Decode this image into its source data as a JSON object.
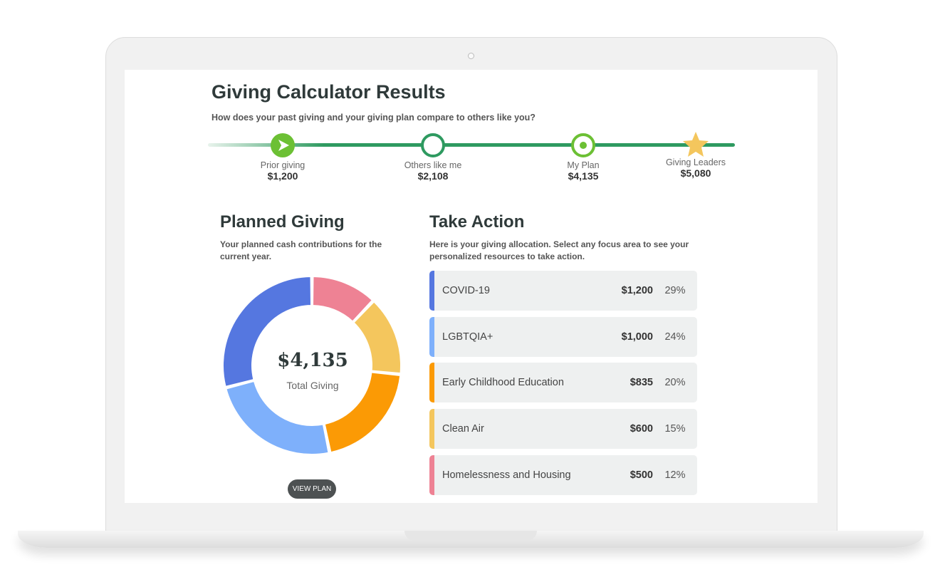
{
  "header": {
    "title": "Giving Calculator Results",
    "subtitle": "How does your past giving and your giving plan compare to others like you?"
  },
  "progress": [
    {
      "label": "Prior giving",
      "value": "$1,200",
      "icon": "play-arrow-icon"
    },
    {
      "label": "Others like me",
      "value": "$2,108",
      "icon": "ring-icon"
    },
    {
      "label": "My Plan",
      "value": "$4,135",
      "icon": "target-icon"
    },
    {
      "label": "Giving Leaders",
      "value": "$5,080",
      "icon": "star-icon"
    }
  ],
  "planned": {
    "title": "Planned Giving",
    "description": "Your planned cash contributions for the current year.",
    "total": "$4,135",
    "total_label": "Total Giving",
    "button": "VIEW PLAN"
  },
  "action": {
    "title": "Take Action",
    "description": "Here is your giving allocation. Select any focus area to see your personalized resources to take action.",
    "items": [
      {
        "name": "COVID-19",
        "amount": "$1,200",
        "percent": "29%",
        "color": "#5577e0"
      },
      {
        "name": "LGBTQIA+",
        "amount": "$1,000",
        "percent": "24%",
        "color": "#7eb0fb"
      },
      {
        "name": "Early Childhood Education",
        "amount": "$835",
        "percent": "20%",
        "color": "#fb9a05"
      },
      {
        "name": "Clean Air",
        "amount": "$600",
        "percent": "15%",
        "color": "#f4c65d"
      },
      {
        "name": "Homelessness and Housing",
        "amount": "$500",
        "percent": "12%",
        "color": "#ee8294"
      }
    ]
  },
  "chart_data": {
    "type": "pie",
    "donut": true,
    "categories": [
      "Homelessness and Housing",
      "Clean Air",
      "Early Childhood Education",
      "LGBTQIA+",
      "COVID-19"
    ],
    "values": [
      500,
      600,
      835,
      1000,
      1200
    ],
    "colors": [
      "#ee8294",
      "#f4c65d",
      "#fb9a05",
      "#7eb0fb",
      "#5577e0"
    ]
  }
}
